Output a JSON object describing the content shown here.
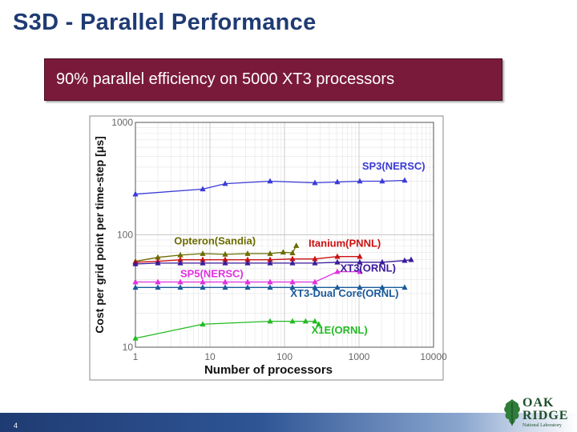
{
  "slide": {
    "title": "S3D - Parallel Performance",
    "banner": "90% parallel efficiency on 5000 XT3 processors",
    "page_number": "4",
    "logo": {
      "line1": "OAK",
      "line2": "RIDGE",
      "line3": "National Laboratory"
    }
  },
  "chart_data": {
    "type": "line",
    "title": "",
    "xlabel": "Number of processors",
    "ylabel": "Cost per grid point per time-step [μs]",
    "xscale": "log",
    "yscale": "log",
    "xlim": [
      1,
      10000
    ],
    "ylim": [
      10,
      1000
    ],
    "xticks": [
      "1",
      "10",
      "100",
      "1000",
      "10000"
    ],
    "yticks": [
      "10",
      "100",
      "1000"
    ],
    "grid": true,
    "series": [
      {
        "name": "SP3(NERSC)",
        "color": "#3a3ad8",
        "x": [
          1,
          8,
          16,
          64,
          256,
          512,
          1024,
          2048,
          4096
        ],
        "y": [
          230,
          255,
          285,
          300,
          290,
          295,
          300,
          300,
          305
        ]
      },
      {
        "name": "Opteron(Sandia)",
        "color": "#6b6b00",
        "x": [
          1,
          2,
          4,
          8,
          16,
          32,
          64,
          96,
          128,
          144
        ],
        "y": [
          58,
          63,
          66,
          68,
          67,
          68,
          68,
          70,
          69,
          80
        ]
      },
      {
        "name": "Itanium(PNNL)",
        "color": "#cc1111",
        "x": [
          1,
          2,
          4,
          8,
          16,
          32,
          64,
          128,
          256,
          512,
          1024
        ],
        "y": [
          57,
          58,
          60,
          60,
          60,
          60,
          60,
          61,
          61,
          64,
          64
        ]
      },
      {
        "name": "XT3(ORNL)",
        "color": "#3a1a9a",
        "x": [
          1,
          2,
          4,
          8,
          16,
          32,
          64,
          128,
          256,
          512,
          1024,
          2048,
          4096,
          5000
        ],
        "y": [
          55,
          56,
          56,
          56,
          56,
          56,
          56,
          56,
          56,
          57,
          57,
          57,
          59,
          60
        ]
      },
      {
        "name": "SP5(NERSC)",
        "color": "#e030e0",
        "x": [
          1,
          2,
          4,
          8,
          16,
          32,
          64,
          128,
          256,
          512,
          1024
        ],
        "y": [
          38,
          38,
          38,
          38,
          38,
          38,
          38,
          38,
          38,
          47,
          47
        ]
      },
      {
        "name": "XT3-Dual Core(ORNL)",
        "color": "#1a5a9a",
        "x": [
          1,
          2,
          4,
          8,
          16,
          32,
          64,
          128,
          256,
          512,
          1024,
          2048,
          4096
        ],
        "y": [
          34,
          34,
          34,
          34,
          34,
          34,
          34,
          34,
          34,
          34,
          34,
          34,
          34
        ]
      },
      {
        "name": "X1E(ORNL)",
        "color": "#22bb22",
        "x": [
          1,
          8,
          64,
          128,
          192,
          256,
          288
        ],
        "y": [
          12,
          16,
          17,
          17,
          17,
          17,
          16
        ]
      }
    ]
  }
}
